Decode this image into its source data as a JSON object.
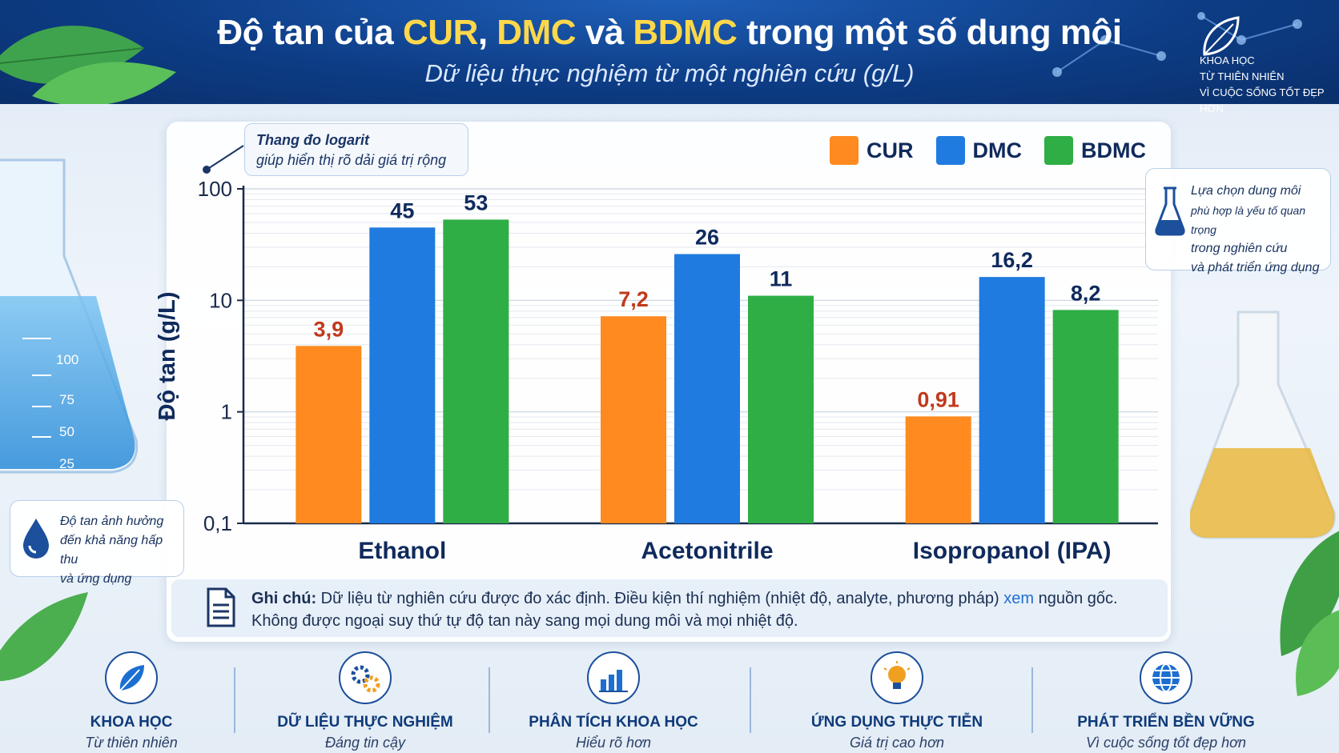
{
  "header": {
    "title_parts": [
      "Độ tan của ",
      "CUR",
      ", ",
      "DMC",
      " và ",
      "BDMC",
      " trong một số dung môi"
    ],
    "subtitle": "Dữ liệu thực nghiệm từ một nghiên cứu (g/L)"
  },
  "brand": {
    "lines": [
      "KHOA HỌC",
      "TỪ THIÊN NHIÊN",
      "VÌ CUỘC SỐNG TỐT ĐẸP HƠN"
    ],
    "icon": "leaf-icon"
  },
  "callout_log": {
    "title": "Thang đo logarit",
    "text": "giúp hiển thị rõ dải giá trị rộng"
  },
  "side_right": {
    "lines": [
      "Lựa chọn dung môi",
      "phù hợp là yếu tố quan trọng",
      "trong nghiên cứu",
      "và phát triển ứng dụng"
    ],
    "icon": "flask-icon"
  },
  "side_left": {
    "lines": [
      "Độ tan ảnh hưởng",
      "đến khả năng hấp thu",
      "và ứng dụng"
    ],
    "icon": "droplet-icon"
  },
  "flask_marks": [
    "100",
    "75",
    "50",
    "25"
  ],
  "note": {
    "label": "Ghi chú:",
    "line1_a": " Dữ liệu từ nghiên cứu được đo xác định. Điều kiện thí nghiệm (nhiệt độ, analyte, phương pháp) ",
    "line1_link": "xem",
    "line1_b": " nguồn gốc.",
    "line2": "Không được ngoại suy thứ tự độ tan này sang mọi dung môi và mọi nhiệt độ.",
    "icon": "document-icon"
  },
  "footer": [
    {
      "title": "KHOA HỌC",
      "sub": "Từ thiên nhiên",
      "icon": "leaf-icon"
    },
    {
      "title": "DỮ LIỆU THỰC NGHIỆM",
      "sub": "Đáng tin cậy",
      "icon": "gears-icon"
    },
    {
      "title": "PHÂN TÍCH KHOA HỌC",
      "sub": "Hiểu rõ hơn",
      "icon": "bar-chart-icon"
    },
    {
      "title": "ỨNG DỤNG THỰC TIỄN",
      "sub": "Giá trị cao hơn",
      "icon": "lightbulb-icon"
    },
    {
      "title": "PHÁT TRIỂN BỀN VỮNG",
      "sub": "Vì cuộc sống tốt đẹp hơn",
      "icon": "globe-icon"
    }
  ],
  "colors": {
    "CUR": "#ff8a1f",
    "DMC": "#1f7be0",
    "BDMC": "#2fae45",
    "CUR_label": "#c0391b",
    "value_label": "#0f2a5c"
  },
  "chart_data": {
    "type": "bar",
    "title": "Độ tan của CUR, DMC và BDMC trong một số dung môi",
    "subtitle": "Dữ liệu thực nghiệm từ một nghiên cứu (g/L)",
    "xlabel": "",
    "ylabel": "Độ tan (g/L)",
    "yscale": "log",
    "ylim": [
      0.1,
      100
    ],
    "yticks": [
      "100",
      "10",
      "1",
      "0,1"
    ],
    "ytick_values": [
      100,
      10,
      1,
      0.1
    ],
    "categories": [
      "Ethanol",
      "Acetonitrile",
      "Isopropanol (IPA)"
    ],
    "series": [
      {
        "name": "CUR",
        "values": [
          3.9,
          7.2,
          0.91
        ],
        "labels": [
          "3,9",
          "7,2",
          "0,91"
        ]
      },
      {
        "name": "DMC",
        "values": [
          45,
          26,
          16.2
        ],
        "labels": [
          "45",
          "26",
          "16,2"
        ]
      },
      {
        "name": "BDMC",
        "values": [
          53,
          11,
          8.2
        ],
        "labels": [
          "53",
          "11",
          "8,2"
        ]
      }
    ],
    "legend": "top-right",
    "grid": true
  }
}
